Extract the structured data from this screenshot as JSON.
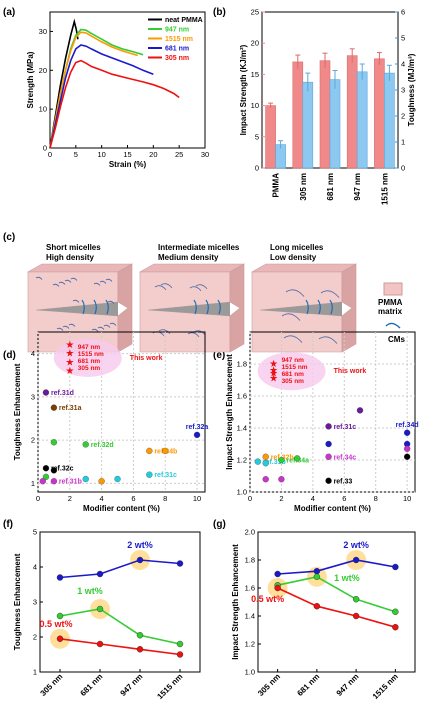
{
  "panel_labels": [
    "(a)",
    "(b)",
    "(c)",
    "(d)",
    "(e)",
    "(f)",
    "(g)"
  ],
  "colors": {
    "pmma": "#000000",
    "nm947": "#33cc33",
    "nm1515": "#ff9900",
    "nm681": "#1a1acc",
    "nm305": "#ee1111",
    "bar_red": "#f08a8a",
    "bar_blue": "#8cc8f0",
    "pink": "#f5c6c6",
    "highlight": "#ffd98a"
  },
  "chart_data": [
    {
      "type": "line",
      "id": "a",
      "xlabel": "Strain (%)",
      "ylabel": "Strength (MPa)",
      "xlim": [
        0,
        30
      ],
      "ylim": [
        0,
        35
      ],
      "xticks": [
        0,
        5,
        10,
        15,
        20,
        25,
        30
      ],
      "yticks": [
        0,
        10,
        20,
        30
      ],
      "legend": "top-right",
      "series": [
        {
          "name": "neat PMMA",
          "color": "#000000",
          "points": [
            [
              0,
              0
            ],
            [
              1,
              8
            ],
            [
              2,
              16
            ],
            [
              3,
              23
            ],
            [
              4,
              29
            ],
            [
              4.7,
              32.5
            ],
            [
              5.1,
              30.5
            ],
            [
              5.4,
              28
            ]
          ]
        },
        {
          "name": "947 nm",
          "color": "#33cc33",
          "points": [
            [
              0,
              0
            ],
            [
              1,
              7
            ],
            [
              2,
              14
            ],
            [
              3,
              20
            ],
            [
              4,
              25.5
            ],
            [
              5,
              29
            ],
            [
              6,
              30.5
            ],
            [
              7,
              30.3
            ],
            [
              8,
              29.5
            ],
            [
              10,
              28
            ],
            [
              12,
              26.5
            ],
            [
              14,
              25.5
            ],
            [
              16,
              24.8
            ],
            [
              18,
              24
            ]
          ]
        },
        {
          "name": "1515 nm",
          "color": "#ff9900",
          "points": [
            [
              0,
              0
            ],
            [
              1,
              7
            ],
            [
              2,
              14
            ],
            [
              3,
              20
            ],
            [
              4,
              25
            ],
            [
              5,
              28.5
            ],
            [
              6,
              29.8
            ],
            [
              7,
              29.6
            ],
            [
              8,
              28.8
            ],
            [
              10,
              27.3
            ],
            [
              12,
              26
            ],
            [
              14,
              25
            ],
            [
              16,
              24.2
            ],
            [
              17,
              23.8
            ]
          ]
        },
        {
          "name": "681 nm",
          "color": "#1a1acc",
          "points": [
            [
              0,
              0
            ],
            [
              1,
              6
            ],
            [
              2,
              12
            ],
            [
              3,
              18
            ],
            [
              4,
              22.5
            ],
            [
              5,
              25.5
            ],
            [
              6,
              26.5
            ],
            [
              7,
              26.2
            ],
            [
              8,
              25.5
            ],
            [
              10,
              24.2
            ],
            [
              12,
              23.2
            ],
            [
              14,
              22.2
            ],
            [
              16,
              21.2
            ],
            [
              18,
              20
            ],
            [
              20,
              19
            ]
          ]
        },
        {
          "name": "305 nm",
          "color": "#ee1111",
          "points": [
            [
              0,
              0
            ],
            [
              1,
              5
            ],
            [
              2,
              10.5
            ],
            [
              3,
              15.5
            ],
            [
              4,
              19.5
            ],
            [
              5,
              22
            ],
            [
              6,
              22.5
            ],
            [
              7,
              21.8
            ],
            [
              8,
              21
            ],
            [
              10,
              20
            ],
            [
              12,
              19
            ],
            [
              15,
              18
            ],
            [
              18,
              17
            ],
            [
              20,
              16.3
            ],
            [
              22,
              15.3
            ],
            [
              24,
              14
            ],
            [
              25,
              13
            ]
          ]
        }
      ]
    },
    {
      "type": "bar",
      "id": "b",
      "categories": [
        "PMMA",
        "305 nm",
        "681 nm",
        "947 nm",
        "1515 nm"
      ],
      "ylabel": "Impact Strength (KJ/m²)",
      "y2label": "Toughness (MJ/m³)",
      "ylim": [
        0,
        25
      ],
      "y2lim": [
        0,
        6
      ],
      "yticks": [
        0,
        5,
        10,
        15,
        20,
        25
      ],
      "y2ticks": [
        0,
        1,
        2,
        3,
        4,
        5,
        6
      ],
      "series": [
        {
          "name": "Impact Strength",
          "axis": "left",
          "color": "#f08a8a",
          "values": [
            10,
            17,
            17.2,
            18,
            17.5
          ],
          "errors": [
            0.4,
            1.1,
            1.2,
            1.1,
            1.0
          ]
        },
        {
          "name": "Toughness",
          "axis": "right",
          "color": "#8cc8f0",
          "values": [
            0.9,
            3.3,
            3.4,
            3.7,
            3.65
          ],
          "errors": [
            0.15,
            0.35,
            0.35,
            0.3,
            0.3
          ]
        }
      ]
    },
    {
      "type": "diagram",
      "id": "c",
      "panels": [
        {
          "line1": "Short micelles",
          "line2": "High density",
          "color": "#000000"
        },
        {
          "line1": "Intermediate micelles",
          "line2": "Medium density",
          "color": "#ee1111"
        },
        {
          "line1": "Long micelles",
          "line2": "Low density",
          "color": "#000000"
        }
      ],
      "legend": [
        {
          "label": "PMMA\nmatrix",
          "kind": "box"
        },
        {
          "label": "CMs",
          "kind": "curve"
        }
      ]
    },
    {
      "type": "scatter",
      "id": "d",
      "xlabel": "Modifier content (%)",
      "ylabel": "Toughness Enhancement",
      "xlim": [
        0,
        10.5
      ],
      "ylim": [
        0.8,
        4.5
      ],
      "xticks": [
        0,
        2,
        4,
        6,
        8,
        10
      ],
      "yticks": [
        1,
        2,
        3,
        4
      ],
      "this_work": {
        "label": "This work",
        "entries": [
          "947 nm",
          "1515 nm",
          "681 nm",
          "305 nm"
        ],
        "points": [
          [
            2,
            4.2
          ],
          [
            2,
            4.0
          ],
          [
            2,
            3.8
          ],
          [
            2,
            3.6
          ]
        ]
      },
      "points": [
        {
          "x": 0.5,
          "y": 3.1,
          "color": "#6a1b9a",
          "label": "ref.31d"
        },
        {
          "x": 1,
          "y": 2.75,
          "color": "#7b3f00",
          "label": "ref.31a"
        },
        {
          "x": 1,
          "y": 1.95,
          "color": "#33cc33"
        },
        {
          "x": 3,
          "y": 1.9,
          "color": "#33cc33",
          "label": "ref.32d"
        },
        {
          "x": 10,
          "y": 2.12,
          "color": "#1a1acc",
          "label": "ref.32a"
        },
        {
          "x": 0.5,
          "y": 1.35,
          "color": "#000000",
          "label": "ref.32c"
        },
        {
          "x": 1,
          "y": 1.3,
          "color": "#000000"
        },
        {
          "x": 0.5,
          "y": 1.15,
          "color": "#33cc33"
        },
        {
          "x": 0.3,
          "y": 1.05,
          "color": "#cc33cc"
        },
        {
          "x": 1,
          "y": 1.05,
          "color": "#cc33cc",
          "label": "ref.31b"
        },
        {
          "x": 3,
          "y": 1.1,
          "color": "#22ccdd"
        },
        {
          "x": 5,
          "y": 1.1,
          "color": "#22ccdd"
        },
        {
          "x": 7,
          "y": 1.2,
          "color": "#22ccdd",
          "label": "ref.31c"
        },
        {
          "x": 4,
          "y": 1.05,
          "color": "#ff9900"
        },
        {
          "x": 7,
          "y": 1.75,
          "color": "#ff9900",
          "label": "ref.34b"
        },
        {
          "x": 8,
          "y": 1.75,
          "color": "#ff9900"
        }
      ]
    },
    {
      "type": "scatter",
      "id": "e",
      "xlabel": "Modifier content (%)",
      "ylabel": "Impact Strength Enhancement",
      "xlim": [
        0,
        10.5
      ],
      "ylim": [
        1.0,
        2.0
      ],
      "xticks": [
        0,
        2,
        4,
        6,
        8,
        10
      ],
      "yticks": [
        1.0,
        1.2,
        1.4,
        1.6,
        1.8
      ],
      "this_work": {
        "label": "This work",
        "entries": [
          "947 nm",
          "1515 nm",
          "681 nm",
          "305 nm"
        ],
        "points": [
          [
            1.5,
            1.8
          ],
          [
            1.5,
            1.76
          ],
          [
            1.5,
            1.74
          ],
          [
            1.5,
            1.71
          ]
        ]
      },
      "points": [
        {
          "x": 7,
          "y": 1.51,
          "color": "#6a1b9a"
        },
        {
          "x": 5,
          "y": 1.41,
          "color": "#6a1b9a",
          "label": "ref.31c"
        },
        {
          "x": 10,
          "y": 1.37,
          "color": "#1a1acc",
          "label": "ref.34d"
        },
        {
          "x": 5,
          "y": 1.3,
          "color": "#1a1acc"
        },
        {
          "x": 10,
          "y": 1.3,
          "color": "#1a1acc"
        },
        {
          "x": 10,
          "y": 1.27,
          "color": "#cc33cc"
        },
        {
          "x": 5,
          "y": 1.22,
          "color": "#cc33cc",
          "label": "ref.34c"
        },
        {
          "x": 0.5,
          "y": 1.19,
          "color": "#22ccdd",
          "label": "ref.31b"
        },
        {
          "x": 1,
          "y": 1.18,
          "color": "#22ccdd"
        },
        {
          "x": 1,
          "y": 1.22,
          "color": "#ff9900",
          "label": "ref.32b"
        },
        {
          "x": 2,
          "y": 1.2,
          "color": "#33cc33",
          "label": "ref.34a"
        },
        {
          "x": 3,
          "y": 1.21,
          "color": "#33cc33"
        },
        {
          "x": 10,
          "y": 1.22,
          "color": "#000000"
        },
        {
          "x": 5,
          "y": 1.07,
          "color": "#000000",
          "label": "ref.33"
        },
        {
          "x": 1,
          "y": 1.08,
          "color": "#cc33cc"
        },
        {
          "x": 2,
          "y": 1.08,
          "color": "#cc33cc"
        }
      ]
    },
    {
      "type": "line",
      "id": "f",
      "categories": [
        "305 nm",
        "681 nm",
        "947 nm",
        "1515 nm"
      ],
      "ylabel": "Toughness Enhancement",
      "ylim": [
        1,
        5
      ],
      "yticks": [
        1,
        2,
        3,
        4,
        5
      ],
      "series": [
        {
          "name": "2 wt%",
          "color": "#1a1acc",
          "values": [
            3.7,
            3.8,
            4.2,
            4.1
          ],
          "highlight": 2
        },
        {
          "name": "1 wt%",
          "color": "#33cc33",
          "values": [
            2.6,
            2.8,
            2.05,
            1.8
          ],
          "highlight": 1
        },
        {
          "name": "0.5 wt%",
          "color": "#ee1111",
          "values": [
            1.95,
            1.8,
            1.65,
            1.5
          ],
          "highlight": 0
        }
      ]
    },
    {
      "type": "line",
      "id": "g",
      "categories": [
        "305 nm",
        "681 nm",
        "947 nm",
        "1515 nm"
      ],
      "ylabel": "Impact Strength Enhancement",
      "ylim": [
        1.0,
        2.0
      ],
      "yticks": [
        1.0,
        1.2,
        1.4,
        1.6,
        1.8,
        2.0
      ],
      "series": [
        {
          "name": "2 wt%",
          "color": "#1a1acc",
          "values": [
            1.7,
            1.72,
            1.8,
            1.75
          ],
          "highlight": 2
        },
        {
          "name": "1 wt%",
          "color": "#33cc33",
          "values": [
            1.62,
            1.68,
            1.52,
            1.43
          ],
          "highlight": 1
        },
        {
          "name": "0.5 wt%",
          "color": "#ee1111",
          "values": [
            1.6,
            1.47,
            1.4,
            1.32
          ],
          "highlight": 0
        }
      ]
    }
  ]
}
